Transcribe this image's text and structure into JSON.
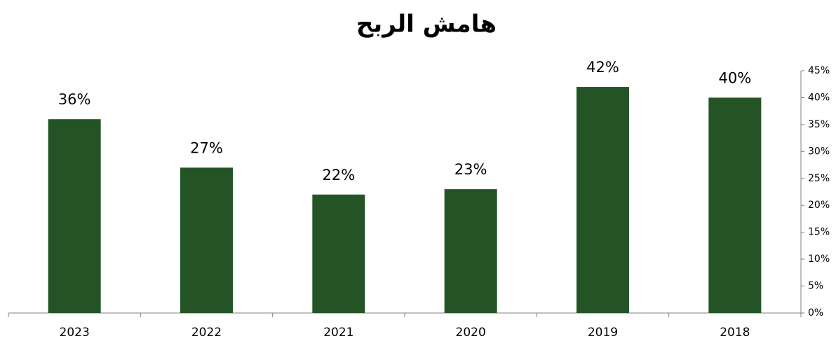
{
  "chart_data": {
    "type": "bar",
    "title": "هامش الربح",
    "categories": [
      "2023",
      "2022",
      "2021",
      "2020",
      "2019",
      "2018"
    ],
    "values": [
      36,
      27,
      22,
      23,
      42,
      40
    ],
    "value_labels": [
      "36%",
      "27%",
      "22%",
      "23%",
      "42%",
      "40%"
    ],
    "color": "#245426",
    "ylim": [
      0,
      45
    ],
    "yticks": [
      {
        "value": 0,
        "label": "0%"
      },
      {
        "value": 5,
        "label": "5%"
      },
      {
        "value": 10,
        "label": "10%"
      },
      {
        "value": 15,
        "label": "15%"
      },
      {
        "value": 20,
        "label": "20%"
      },
      {
        "value": 25,
        "label": "25%"
      },
      {
        "value": 30,
        "label": "30%"
      },
      {
        "value": 35,
        "label": "35%"
      },
      {
        "value": 40,
        "label": "40%"
      },
      {
        "value": 45,
        "label": "45%"
      }
    ],
    "yaxis_side": "right",
    "grid": false
  }
}
